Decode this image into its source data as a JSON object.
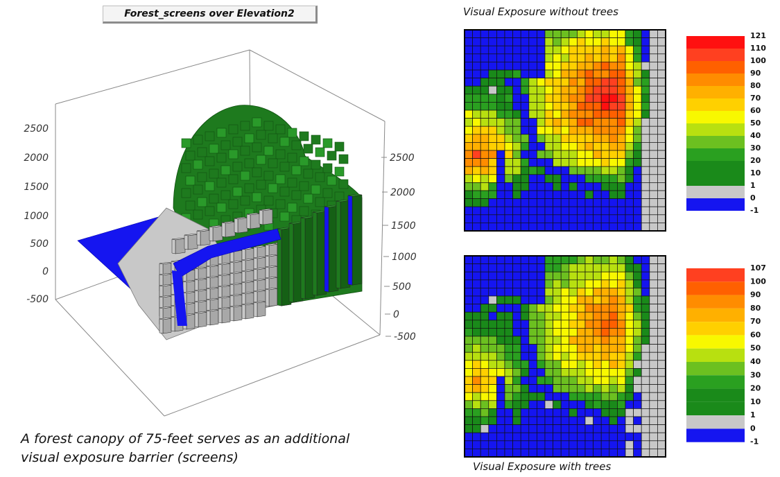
{
  "title_3d": "Forest_screens over Elevation2",
  "caption": {
    "line1": "A forest canopy of 75-feet serves as an additional",
    "line2": "visual exposure barrier (screens)"
  },
  "map_top_title": "Visual Exposure without trees",
  "map_bottom_title": "Visual Exposure with trees",
  "colors": {
    "blue": "#1515f0",
    "gray": "#c8c8c8",
    "green_dark": "#1a8a1a",
    "green": "#2aa020",
    "green_light": "#6cc020",
    "yellow_green": "#b8e010",
    "yellow": "#f8f800",
    "gold": "#ffd000",
    "orange_light": "#ffb000",
    "orange": "#ff8c00",
    "orange_red": "#ff6000",
    "red_orange": "#ff4020",
    "red": "#ff1010"
  },
  "chart_data": [
    {
      "type": "bar3d",
      "title": "Forest_screens over Elevation2",
      "left_axis_ticks": [
        "2500",
        "2000",
        "1500",
        "1000",
        "500",
        "0",
        "-500"
      ],
      "right_axis_ticks": [
        "2500",
        "2000",
        "1500",
        "1000",
        "500",
        "0",
        "-500"
      ],
      "zlim": [
        -500,
        2700
      ],
      "surface_classes": [
        "water",
        "open",
        "forest"
      ]
    },
    {
      "type": "heatmap",
      "title": "Visual Exposure without trees",
      "grid_size": 25,
      "legend": {
        "labels": [
          "121",
          "110",
          "100",
          "90",
          "80",
          "70",
          "60",
          "50",
          "40",
          "30",
          "20",
          "10",
          "1",
          "0",
          "-1"
        ],
        "colors": [
          "#ff1010",
          "#ff4020",
          "#ff6000",
          "#ff8c00",
          "#ffb000",
          "#ffd000",
          "#f8f800",
          "#b8e010",
          "#6cc020",
          "#2aa020",
          "#1a8a1a",
          "#1a8a1a",
          "#c8c8c8",
          "#1515f0"
        ]
      }
    },
    {
      "type": "heatmap",
      "title": "Visual Exposure with trees",
      "grid_size": 25,
      "legend": {
        "labels": [
          "107",
          "100",
          "90",
          "80",
          "70",
          "60",
          "50",
          "40",
          "30",
          "20",
          "10",
          "1",
          "0",
          "-1"
        ],
        "colors": [
          "#ff4020",
          "#ff6000",
          "#ff8c00",
          "#ffb000",
          "#ffd000",
          "#f8f800",
          "#b8e010",
          "#6cc020",
          "#2aa020",
          "#1a8a1a",
          "#1a8a1a",
          "#c8c8c8",
          "#1515f0"
        ]
      }
    }
  ]
}
